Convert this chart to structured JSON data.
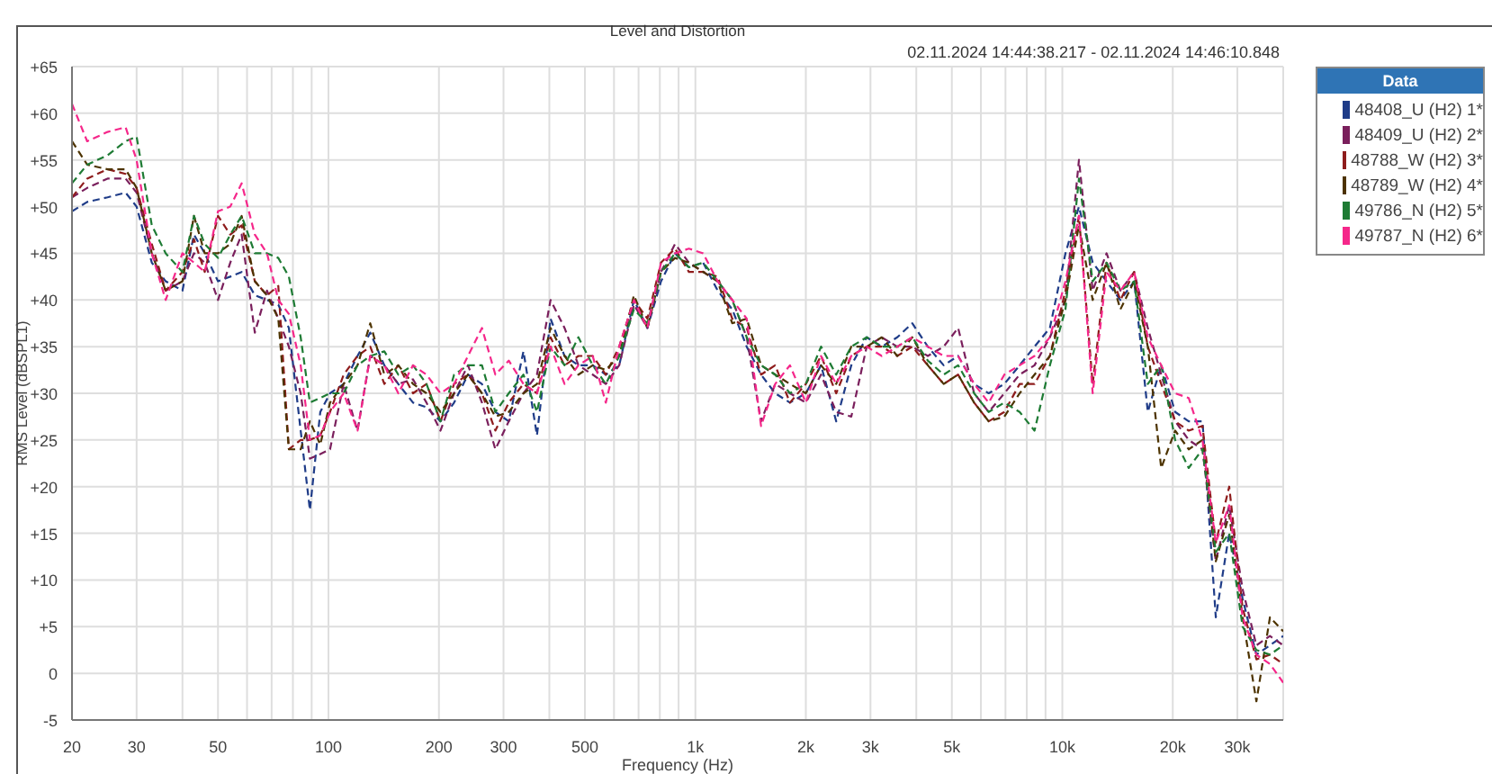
{
  "chart_data": {
    "type": "line",
    "title": "Level and Distortion",
    "xlabel": "Frequency (Hz)",
    "ylabel": "RMS Level (dBSPL1)",
    "annotations": [
      "02.11.2024 14:44:38.217 - 02.11.2024 14:46:10.848"
    ],
    "legend_title": "Data",
    "log": "x",
    "grid": true,
    "legend": "top right",
    "line_style": "dashed",
    "xlim": [
      20,
      40000
    ],
    "ylim": [
      -5,
      65
    ],
    "xticks": [
      20,
      30,
      {
        "value": 40,
        "label": null
      },
      50,
      {
        "value": 60,
        "label": null
      },
      {
        "value": 70,
        "label": null
      },
      {
        "value": 80,
        "label": null
      },
      {
        "value": 90,
        "label": null
      },
      100,
      200,
      300,
      {
        "value": 400,
        "label": null
      },
      500,
      {
        "value": 600,
        "label": null
      },
      {
        "value": 700,
        "label": null
      },
      {
        "value": 800,
        "label": null
      },
      {
        "value": 900,
        "label": null
      },
      {
        "value": 1000,
        "label": "1k"
      },
      {
        "value": 2000,
        "label": "2k"
      },
      {
        "value": 3000,
        "label": "3k"
      },
      {
        "value": 4000,
        "label": null
      },
      {
        "value": 5000,
        "label": "5k"
      },
      {
        "value": 6000,
        "label": null
      },
      {
        "value": 7000,
        "label": null
      },
      {
        "value": 8000,
        "label": null
      },
      {
        "value": 9000,
        "label": null
      },
      {
        "value": 10000,
        "label": "10k"
      },
      {
        "value": 20000,
        "label": "20k"
      },
      {
        "value": 30000,
        "label": "30k"
      }
    ],
    "yticks": [
      {
        "value": 65,
        "label": "+65"
      },
      {
        "value": 60,
        "label": "+60"
      },
      {
        "value": 55,
        "label": "+55"
      },
      {
        "value": 50,
        "label": "+50"
      },
      {
        "value": 45,
        "label": "+45"
      },
      {
        "value": 40,
        "label": "+40"
      },
      {
        "value": 35,
        "label": "+35"
      },
      {
        "value": 30,
        "label": "+30"
      },
      {
        "value": 25,
        "label": "+25"
      },
      {
        "value": 20,
        "label": "+20"
      },
      {
        "value": 15,
        "label": "+15"
      },
      {
        "value": 10,
        "label": "+10"
      },
      {
        "value": 5,
        "label": "+5"
      },
      0,
      -5
    ],
    "x": [
      20,
      22,
      25,
      28,
      30,
      33,
      36,
      40,
      43,
      46,
      50,
      54,
      58,
      63,
      68,
      73,
      78,
      84,
      89,
      95,
      101,
      110,
      120,
      130,
      142,
      155,
      170,
      185,
      202,
      220,
      240,
      262,
      285,
      310,
      340,
      370,
      403,
      440,
      480,
      525,
      570,
      620,
      680,
      740,
      806,
      880,
      960,
      1050,
      1150,
      1260,
      1380,
      1510,
      1650,
      1810,
      2000,
      2200,
      2420,
      2660,
      2930,
      3220,
      3550,
      3900,
      4300,
      4750,
      5200,
      5750,
      6300,
      6950,
      7650,
      8400,
      9250,
      10200,
      11100,
      12100,
      13200,
      14400,
      15700,
      17100,
      18600,
      20300,
      22100,
      24100,
      26200,
      28500,
      31000,
      33800,
      36800,
      40000
    ],
    "series": [
      {
        "name": "48408_U (H2) 1*",
        "color": "#1f3c88",
        "values": [
          49.5,
          50.5,
          51,
          51.5,
          50,
          44,
          42,
          41,
          47,
          45,
          42,
          42.5,
          43,
          40.5,
          40,
          39.5,
          37,
          26,
          17.5,
          28,
          30,
          31,
          34,
          36.5,
          33,
          31,
          29,
          28.5,
          27,
          29,
          32,
          31,
          28,
          27,
          34.5,
          25.5,
          38,
          34,
          33,
          33,
          32,
          33,
          40,
          37,
          42,
          45,
          43.5,
          44,
          41,
          39,
          35,
          32,
          30,
          29,
          30,
          33,
          27,
          33,
          36,
          35,
          36,
          37.5,
          35,
          33,
          34,
          31,
          30,
          31,
          33,
          35,
          37,
          45,
          50,
          44,
          42,
          40,
          42,
          28,
          33,
          28,
          27,
          27,
          6,
          15,
          8,
          2,
          3,
          4
        ]
      },
      {
        "name": "48409_U (H2) 2*",
        "color": "#7a1f5c",
        "values": [
          51,
          52,
          53,
          53,
          51.5,
          45,
          41,
          42,
          45,
          44,
          40,
          44,
          47,
          36.5,
          41,
          38,
          35,
          30,
          23,
          23.5,
          24,
          31,
          26,
          34,
          33,
          31,
          31.5,
          29,
          26,
          30,
          33,
          29,
          24,
          27,
          30,
          32,
          40,
          37,
          33,
          32,
          31,
          33,
          39.5,
          37,
          43,
          46,
          44,
          43,
          42,
          40,
          36,
          27,
          31,
          30,
          29,
          32,
          28,
          27.5,
          35,
          36,
          35,
          35,
          34,
          35,
          37,
          30,
          28,
          30,
          32,
          33,
          36,
          40,
          55,
          41,
          45,
          41,
          43,
          37,
          32,
          27,
          25,
          24,
          12,
          18,
          9,
          3,
          4,
          3
        ]
      },
      {
        "name": "48788_W (H2) 3*",
        "color": "#8e1c1c",
        "values": [
          51,
          53,
          54,
          53.5,
          52,
          46,
          41,
          43,
          46.5,
          43,
          49,
          47,
          48,
          42,
          40.5,
          41.5,
          24,
          25,
          25,
          25.5,
          28,
          32,
          34,
          35,
          31,
          33,
          30,
          31,
          27,
          31,
          32,
          30,
          26,
          29,
          31,
          30,
          36,
          33,
          34,
          34,
          32,
          35,
          40,
          38,
          44,
          45.5,
          43,
          43,
          42.5,
          38,
          37,
          32,
          33,
          29,
          31,
          34,
          30,
          34,
          35,
          35,
          34,
          35,
          33,
          31,
          32,
          29,
          27,
          28,
          31,
          31,
          34,
          41,
          49,
          31,
          44,
          40,
          43,
          35,
          31,
          27,
          26,
          26.5,
          14,
          20,
          7,
          1.5,
          2,
          1
        ]
      },
      {
        "name": "48789_W (H2) 4*",
        "color": "#4d3300",
        "values": [
          57,
          54.5,
          54,
          54,
          52,
          45,
          41,
          42,
          49,
          45,
          45,
          46,
          49,
          42,
          40.5,
          38,
          24,
          24,
          27,
          24.5,
          29,
          31,
          33,
          37.5,
          32,
          33,
          31,
          30,
          28,
          30,
          32,
          30,
          27.5,
          28,
          30,
          31,
          37,
          34,
          32,
          33,
          32.5,
          34,
          40.5,
          37,
          43,
          44.5,
          44,
          43,
          42,
          37.5,
          38,
          33,
          32,
          31,
          30,
          33,
          31,
          35,
          35,
          36,
          34,
          36,
          33,
          31,
          32,
          29,
          27,
          27.5,
          30,
          32,
          34,
          40,
          48,
          40,
          44,
          39,
          42,
          35,
          22,
          26,
          24,
          25,
          12,
          17,
          6,
          -3,
          6,
          4.5
        ]
      },
      {
        "name": "49786_N (H2) 5*",
        "color": "#1e7b34",
        "values": [
          52.5,
          54.5,
          55.5,
          57,
          57.5,
          48,
          45,
          43,
          49,
          46,
          44.5,
          47,
          49,
          45,
          45,
          44.5,
          42.5,
          36,
          29,
          29.5,
          30,
          30,
          33,
          34,
          34.5,
          32,
          33,
          31,
          27,
          32,
          33,
          33,
          28,
          30,
          32,
          28,
          35,
          33,
          36,
          33,
          31,
          34,
          39,
          37.5,
          43,
          45,
          43.5,
          44,
          42,
          40,
          36,
          33,
          32,
          30,
          31,
          35,
          32,
          35,
          36,
          35,
          35,
          36,
          33.5,
          32,
          33,
          30,
          28,
          29,
          28,
          26,
          33,
          39,
          53,
          42,
          44,
          41,
          42,
          31,
          33,
          25,
          22,
          24,
          13,
          15,
          5,
          2.5,
          2,
          3
        ]
      },
      {
        "name": "49787_N (H2) 6*",
        "color": "#f5278a",
        "values": [
          61,
          57,
          58,
          58.5,
          55,
          45,
          40,
          45,
          44,
          43,
          49.5,
          50,
          52.5,
          47,
          45,
          40,
          38.5,
          33,
          25,
          25.5,
          28,
          30,
          26,
          34,
          33,
          30,
          33,
          32,
          30,
          31,
          34,
          37,
          32,
          33.5,
          31,
          30,
          35,
          31,
          33,
          34,
          29,
          35,
          40,
          37,
          44,
          45,
          45.5,
          45,
          42,
          40,
          38,
          26.5,
          31,
          33,
          29,
          34,
          31,
          34,
          35,
          34,
          35,
          36,
          35,
          34,
          34,
          31,
          29,
          32,
          33,
          34,
          36,
          42,
          49,
          30,
          43,
          41,
          43,
          36,
          33,
          30,
          29.5,
          25,
          14,
          18,
          6,
          2,
          1,
          -1
        ]
      }
    ]
  }
}
